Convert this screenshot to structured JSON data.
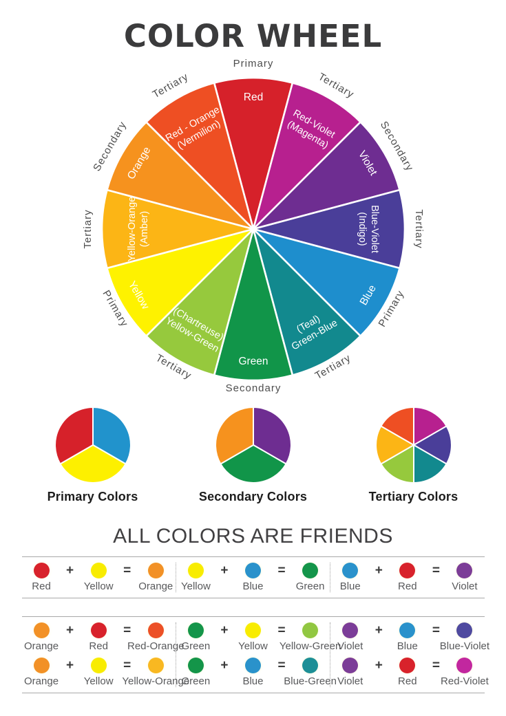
{
  "title": "COLOR WHEEL",
  "wheel": {
    "segments": [
      {
        "name": "Red",
        "lines": [
          "Red"
        ],
        "ring": "Primary",
        "color": "#d6212a",
        "angle": 0
      },
      {
        "name": "Red-Violet (Magenta)",
        "lines": [
          "Red-Violet",
          "(Magenta)"
        ],
        "ring": "Tertiary",
        "color": "#b7208f",
        "angle": 30
      },
      {
        "name": "Violet",
        "lines": [
          "Violet"
        ],
        "ring": "Secondary",
        "color": "#6e2d91",
        "angle": 60
      },
      {
        "name": "Blue-Violet (Indigo)",
        "lines": [
          "Blue-Violet",
          "(Indigo)"
        ],
        "ring": "Tertiary",
        "color": "#4a3e99",
        "angle": 90
      },
      {
        "name": "Blue",
        "lines": [
          "Blue"
        ],
        "ring": "Primary",
        "color": "#1e8ecd",
        "angle": 120
      },
      {
        "name": "Green-Blue (Teal)",
        "lines": [
          "(Teal)",
          "Green-Blue"
        ],
        "ring": "Tertiary",
        "color": "#12898e",
        "angle": 150
      },
      {
        "name": "Green",
        "lines": [
          "Green"
        ],
        "ring": "Secondary",
        "color": "#119549",
        "angle": 180
      },
      {
        "name": "Yellow-Green (Chartreuse)",
        "lines": [
          "(Chartreuse)",
          "Yellow-Green"
        ],
        "ring": "Tertiary",
        "color": "#96c93d",
        "angle": 210
      },
      {
        "name": "Yellow",
        "lines": [
          "Yellow"
        ],
        "ring": "Primary",
        "color": "#fef200",
        "angle": 240
      },
      {
        "name": "Yellow-Orange (Amber)",
        "lines": [
          "Yellow-Orange",
          "(Amber)"
        ],
        "ring": "Tertiary",
        "color": "#fcb515",
        "angle": 270
      },
      {
        "name": "Orange",
        "lines": [
          "Orange"
        ],
        "ring": "Secondary",
        "color": "#f6921e",
        "angle": 300
      },
      {
        "name": "Red-Orange (Vermilion)",
        "lines": [
          "Red - Orange",
          "(Vermilion)"
        ],
        "ring": "Tertiary",
        "color": "#ee4f23",
        "angle": 330
      }
    ]
  },
  "pies": [
    {
      "label": "Primary Colors",
      "slices": [
        {
          "name": "Blue",
          "color": "#2193cc"
        },
        {
          "name": "Yellow",
          "color": "#fdf000"
        },
        {
          "name": "Red",
          "color": "#d6212a"
        }
      ]
    },
    {
      "label": "Secondary Colors",
      "slices": [
        {
          "name": "Violet",
          "color": "#6e2d91"
        },
        {
          "name": "Green",
          "color": "#119549"
        },
        {
          "name": "Orange",
          "color": "#f6921e"
        }
      ]
    },
    {
      "label": "Tertiary Colors",
      "slices": [
        {
          "name": "Red-Violet",
          "color": "#b7208f"
        },
        {
          "name": "Blue-Violet",
          "color": "#4a3e99"
        },
        {
          "name": "Green-Blue",
          "color": "#12898e"
        },
        {
          "name": "Yellow-Green",
          "color": "#96c93d"
        },
        {
          "name": "Yellow-Orange",
          "color": "#fcb515"
        },
        {
          "name": "Red-Orange",
          "color": "#ee4f23"
        }
      ]
    }
  ],
  "friends": {
    "heading": "ALL COLORS ARE FRIENDS",
    "plus": "+",
    "equals": "=",
    "dot_colors": {
      "Red": "#d8222b",
      "Yellow": "#f8ec00",
      "Orange": "#f29126",
      "Blue": "#2a92cb",
      "Green": "#149549",
      "Violet": "#7c3d97",
      "Red-Orange": "#ec5026",
      "Yellow-Orange": "#f9b821",
      "Yellow-Green": "#91c740",
      "Blue-Green": "#1d8f96",
      "Blue-Violet": "#4f4a9f",
      "Red-Violet": "#c2279f"
    },
    "bands": [
      [
        [
          {
            "a": "Red",
            "b": "Yellow",
            "result": "Orange"
          }
        ],
        [
          {
            "a": "Yellow",
            "b": "Blue",
            "result": "Green"
          }
        ],
        [
          {
            "a": "Blue",
            "b": "Red",
            "result": "Violet"
          }
        ]
      ],
      [
        [
          {
            "a": "Orange",
            "b": "Red",
            "result": "Red-Orange"
          },
          {
            "a": "Orange",
            "b": "Yellow",
            "result": "Yellow-Orange"
          }
        ],
        [
          {
            "a": "Green",
            "b": "Yellow",
            "result": "Yellow-Green"
          },
          {
            "a": "Green",
            "b": "Blue",
            "result": "Blue-Green"
          }
        ],
        [
          {
            "a": "Violet",
            "b": "Blue",
            "result": "Blue-Violet"
          },
          {
            "a": "Violet",
            "b": "Red",
            "result": "Red-Violet"
          }
        ]
      ]
    ]
  }
}
